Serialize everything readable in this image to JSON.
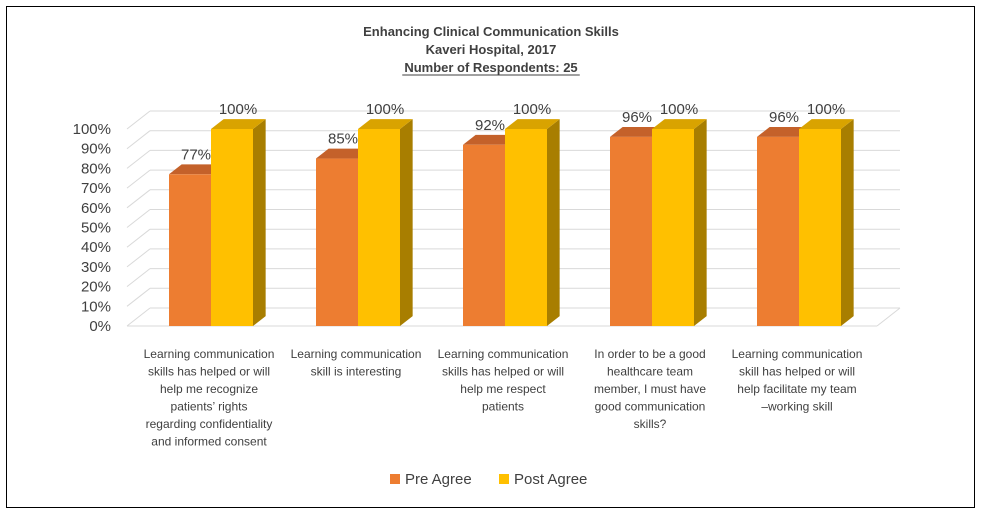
{
  "chart_data": {
    "type": "bar",
    "title_lines": [
      "Enhancing Clinical Communication Skills",
      "Kaveri Hospital, 2017",
      "Number of Respondents: 25"
    ],
    "categories": [
      [
        "Learning communication",
        "skills has helped or will",
        "help me recognize",
        "patients’ rights",
        "regarding confidentiality",
        "and informed consent"
      ],
      [
        "Learning communication",
        "skill is interesting"
      ],
      [
        "Learning communication",
        "skills has helped or will",
        "help me respect",
        "patients"
      ],
      [
        "In order to be a good",
        "healthcare team",
        "member, I must have",
        "good communication",
        "skills?"
      ],
      [
        "Learning communication",
        "skill has helped  or will",
        "help facilitate my team",
        "–working skill"
      ]
    ],
    "series": [
      {
        "name": "Pre Agree",
        "values": [
          77,
          85,
          92,
          96,
          96
        ],
        "labels": [
          "77%",
          "85%",
          "92%",
          "96%",
          "96%"
        ],
        "color": "#ED7D31",
        "side_color": "#B8601F",
        "top_color": "#C4612A"
      },
      {
        "name": "Post Agree",
        "values": [
          100,
          100,
          100,
          100,
          100
        ],
        "labels": [
          "100%",
          "100%",
          "100%",
          "100%",
          "100%"
        ],
        "color": "#FFC000",
        "side_color": "#A87E00",
        "top_color": "#D9A300"
      }
    ],
    "y_ticks": [
      "0%",
      "10%",
      "20%",
      "30%",
      "40%",
      "50%",
      "60%",
      "70%",
      "80%",
      "90%",
      "100%"
    ],
    "ylim": [
      0,
      100
    ],
    "y_step": 10,
    "grid": true,
    "legend_position": "bottom",
    "three_d": true
  }
}
